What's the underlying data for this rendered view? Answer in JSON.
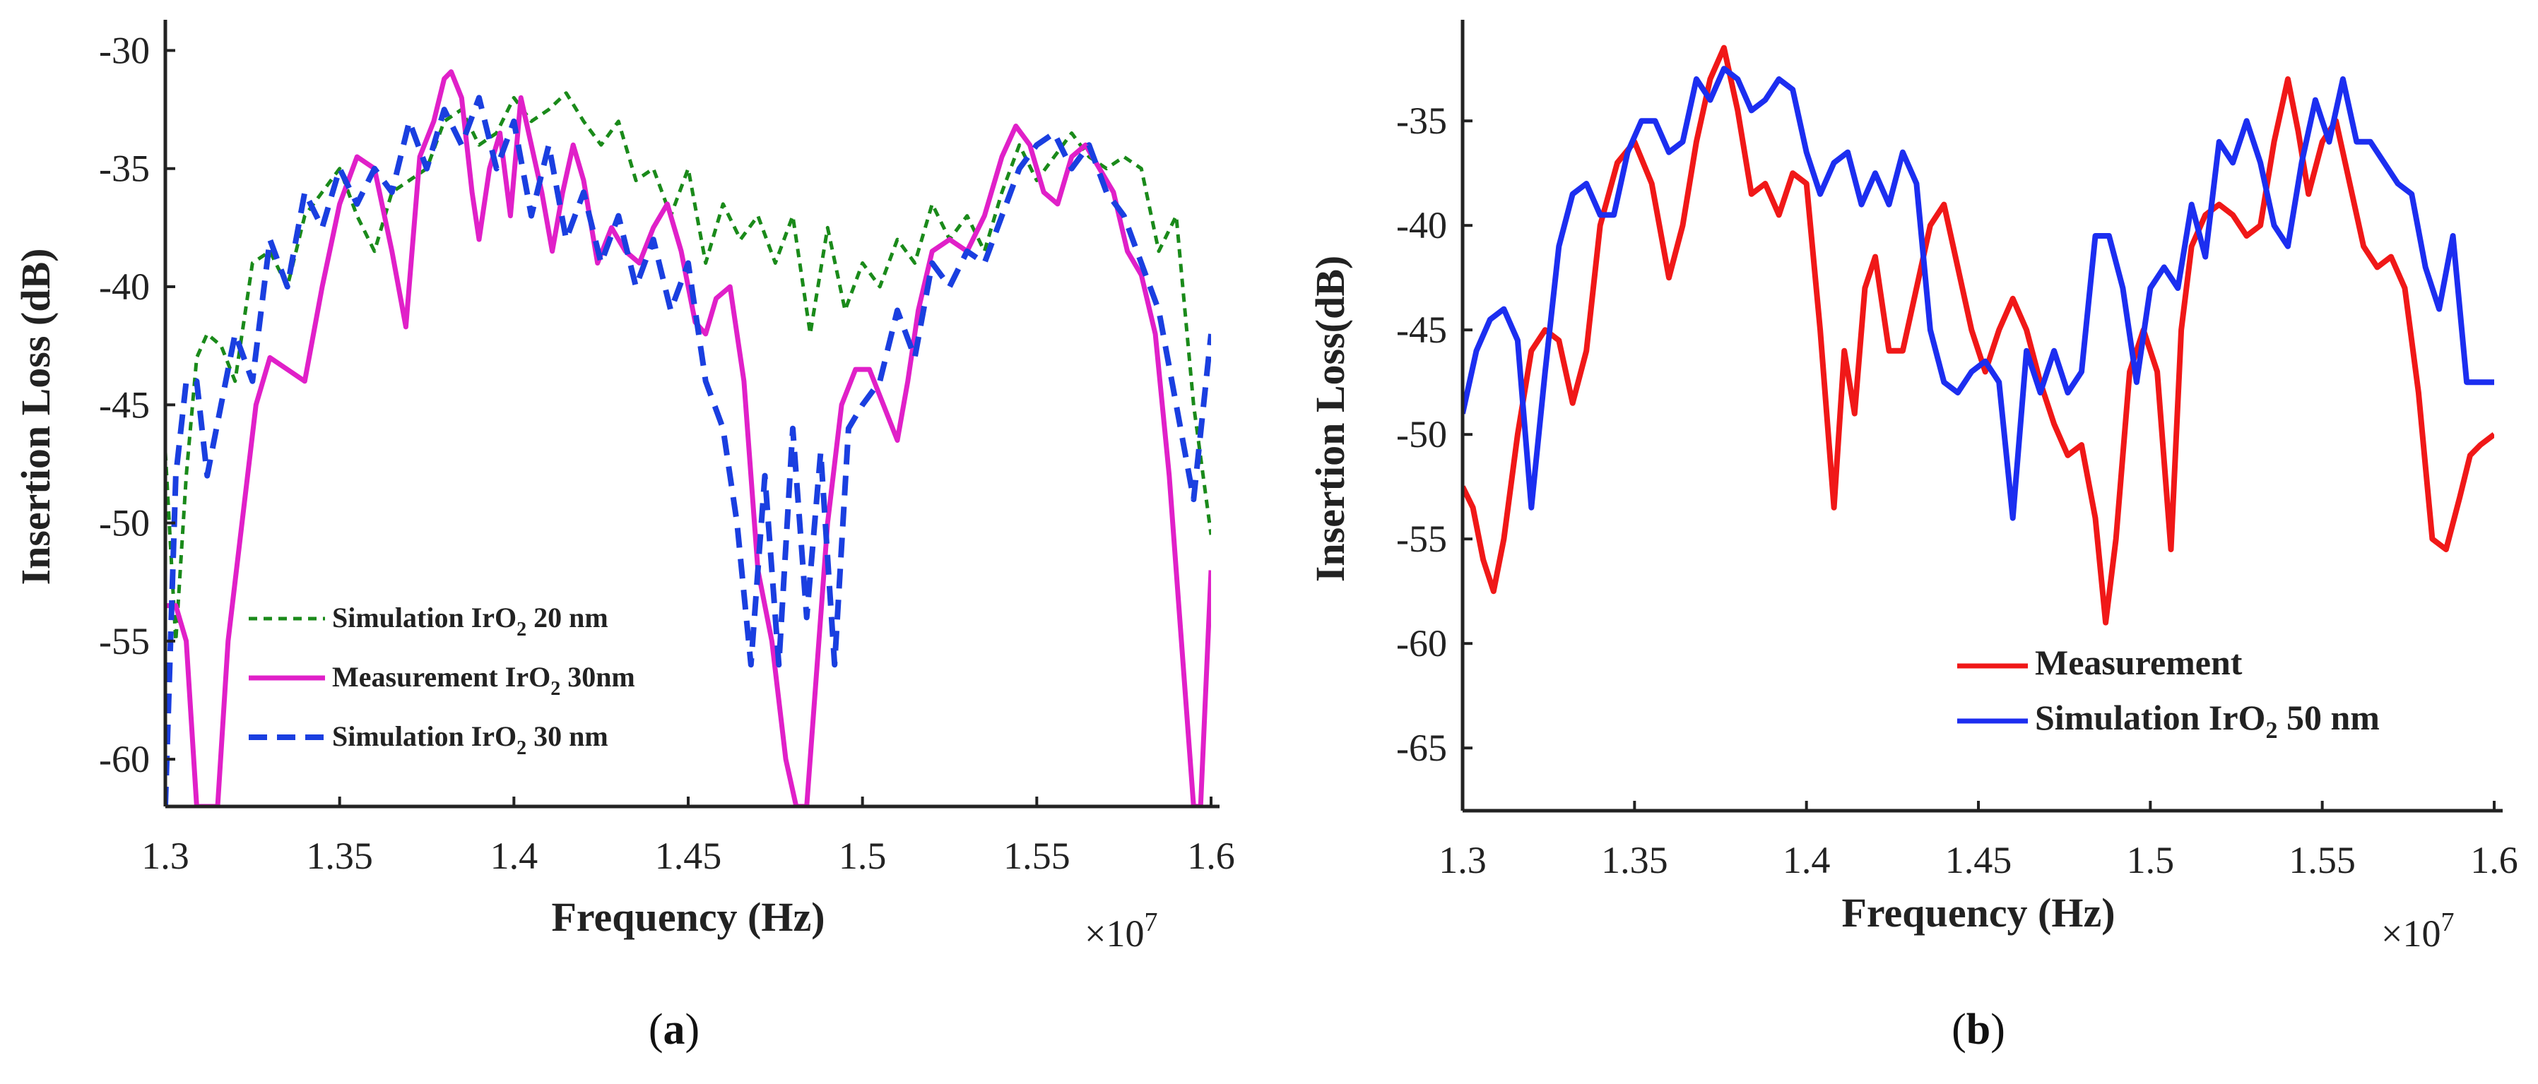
{
  "chart_data": [
    {
      "type": "line",
      "panel_label": "(a)",
      "panel_letter": "a",
      "xlabel": "Frequency (Hz)",
      "ylabel": "Insertion Loss (dB)",
      "x_multiplier": "×10^7",
      "xlim": [
        1.3,
        1.6
      ],
      "ylim": [
        -62,
        -29
      ],
      "xticks": [
        "1.3",
        "1.35",
        "1.4",
        "1.45",
        "1.5",
        "1.55",
        "1.6"
      ],
      "yticks": [
        "-30",
        "-35",
        "-40",
        "-45",
        "-50",
        "-55",
        "-60"
      ],
      "legend_position": "bottom-left",
      "series": [
        {
          "name": "Simulation IrO2 20 nm",
          "name_main": "Simulation IrO",
          "name_sub": "2",
          "name_tail": " 20 nm",
          "color": "#1a8a1a",
          "style": "dotted",
          "x": [
            1.3,
            1.303,
            1.306,
            1.309,
            1.312,
            1.316,
            1.32,
            1.325,
            1.33,
            1.335,
            1.34,
            1.345,
            1.35,
            1.355,
            1.36,
            1.365,
            1.37,
            1.375,
            1.38,
            1.385,
            1.39,
            1.395,
            1.4,
            1.405,
            1.41,
            1.415,
            1.42,
            1.425,
            1.43,
            1.435,
            1.44,
            1.445,
            1.45,
            1.455,
            1.46,
            1.465,
            1.47,
            1.475,
            1.48,
            1.485,
            1.49,
            1.495,
            1.5,
            1.505,
            1.51,
            1.515,
            1.52,
            1.525,
            1.53,
            1.535,
            1.54,
            1.545,
            1.55,
            1.555,
            1.56,
            1.565,
            1.57,
            1.575,
            1.58,
            1.585,
            1.59,
            1.595,
            1.6
          ],
          "y": [
            -47,
            -55,
            -48,
            -43,
            -42,
            -42.5,
            -44,
            -39,
            -38.5,
            -40,
            -37,
            -36,
            -35,
            -37,
            -38.5,
            -36,
            -35.5,
            -35,
            -33,
            -32.5,
            -34,
            -33.5,
            -32,
            -33,
            -32.5,
            -31.8,
            -33,
            -34,
            -33,
            -35.5,
            -35,
            -37,
            -35,
            -39,
            -36.5,
            -38,
            -37,
            -39,
            -37,
            -42,
            -37.5,
            -41,
            -39,
            -40,
            -38,
            -39,
            -36.5,
            -38,
            -37,
            -38.5,
            -36,
            -34,
            -35.5,
            -34.5,
            -33.5,
            -34.5,
            -35,
            -34.5,
            -35,
            -38.5,
            -37,
            -45,
            -50.5
          ]
        },
        {
          "name": "Measurement IrO2 30nm",
          "name_main": "Measurement IrO",
          "name_sub": "2",
          "name_tail": " 30nm",
          "color": "#e020c8",
          "style": "solid",
          "x": [
            1.3,
            1.303,
            1.306,
            1.309,
            1.312,
            1.315,
            1.318,
            1.322,
            1.326,
            1.33,
            1.335,
            1.34,
            1.345,
            1.35,
            1.355,
            1.36,
            1.365,
            1.369,
            1.373,
            1.377,
            1.38,
            1.382,
            1.385,
            1.388,
            1.39,
            1.393,
            1.396,
            1.399,
            1.402,
            1.405,
            1.408,
            1.411,
            1.414,
            1.417,
            1.42,
            1.424,
            1.428,
            1.432,
            1.436,
            1.44,
            1.444,
            1.448,
            1.452,
            1.455,
            1.458,
            1.462,
            1.466,
            1.47,
            1.474,
            1.478,
            1.481,
            1.484,
            1.487,
            1.49,
            1.494,
            1.498,
            1.502,
            1.506,
            1.51,
            1.513,
            1.516,
            1.52,
            1.525,
            1.53,
            1.535,
            1.54,
            1.544,
            1.548,
            1.552,
            1.556,
            1.56,
            1.564,
            1.568,
            1.572,
            1.576,
            1.58,
            1.584,
            1.588,
            1.592,
            1.595,
            1.597,
            1.6
          ],
          "y": [
            -53.5,
            -53.5,
            -55,
            -62,
            -62,
            -62,
            -55,
            -50,
            -45,
            -43,
            -43.5,
            -44,
            -40,
            -36.5,
            -34.5,
            -35,
            -38.5,
            -41.7,
            -34.5,
            -33,
            -31.2,
            -30.9,
            -32,
            -36,
            -38,
            -35,
            -33.5,
            -37,
            -32,
            -34,
            -36,
            -38.5,
            -36,
            -34,
            -35.5,
            -39,
            -37.5,
            -38.5,
            -39,
            -37.5,
            -36.5,
            -38.5,
            -41.5,
            -42,
            -40.5,
            -40,
            -44,
            -52,
            -55,
            -60,
            -62,
            -62,
            -56,
            -50,
            -45,
            -43.5,
            -43.5,
            -45,
            -46.5,
            -44,
            -41,
            -38.5,
            -38,
            -38.5,
            -37,
            -34.5,
            -33.2,
            -34,
            -36,
            -36.5,
            -34.5,
            -34,
            -35,
            -36,
            -38.5,
            -39.5,
            -42,
            -48,
            -56,
            -62,
            -62,
            -52
          ]
        },
        {
          "name": "Simulation IrO2 30 nm",
          "name_main": "Simulation IrO",
          "name_sub": "2",
          "name_tail": " 30 nm",
          "color": "#1a3fe0",
          "style": "dashed",
          "x": [
            1.3,
            1.303,
            1.306,
            1.309,
            1.312,
            1.316,
            1.32,
            1.325,
            1.33,
            1.335,
            1.34,
            1.345,
            1.35,
            1.355,
            1.36,
            1.365,
            1.37,
            1.375,
            1.38,
            1.385,
            1.39,
            1.395,
            1.4,
            1.405,
            1.41,
            1.415,
            1.42,
            1.425,
            1.43,
            1.435,
            1.44,
            1.445,
            1.45,
            1.455,
            1.46,
            1.464,
            1.468,
            1.472,
            1.476,
            1.48,
            1.484,
            1.488,
            1.492,
            1.496,
            1.5,
            1.505,
            1.51,
            1.515,
            1.52,
            1.525,
            1.53,
            1.535,
            1.54,
            1.545,
            1.55,
            1.555,
            1.56,
            1.565,
            1.57,
            1.575,
            1.58,
            1.585,
            1.59,
            1.595,
            1.6
          ],
          "y": [
            -62,
            -48,
            -44,
            -44,
            -48,
            -45,
            -42,
            -44,
            -38,
            -40,
            -36,
            -37.5,
            -35,
            -36.5,
            -35,
            -36,
            -33,
            -35,
            -32.5,
            -34,
            -32,
            -35,
            -33,
            -37,
            -34,
            -38,
            -36,
            -39,
            -37,
            -40,
            -38,
            -41,
            -39,
            -44,
            -46,
            -50,
            -56,
            -48,
            -56,
            -46,
            -54,
            -47,
            -56,
            -46,
            -45,
            -44,
            -41,
            -43,
            -39,
            -40,
            -38.5,
            -39,
            -37,
            -35,
            -34,
            -33.5,
            -35,
            -34,
            -36,
            -37,
            -39,
            -41,
            -45,
            -49,
            -42
          ]
        }
      ]
    },
    {
      "type": "line",
      "panel_label": "(b)",
      "panel_letter": "b",
      "xlabel": "Frequency (Hz)",
      "ylabel": "Insertion Loss(dB)",
      "x_multiplier": "×10^7",
      "xlim": [
        1.3,
        1.6
      ],
      "ylim": [
        -68,
        -30.5
      ],
      "xticks": [
        "1.3",
        "1.35",
        "1.4",
        "1.45",
        "1.5",
        "1.55",
        "1.6"
      ],
      "yticks": [
        "-35",
        "-40",
        "-45",
        "-50",
        "-55",
        "-60",
        "-65"
      ],
      "legend_position": "bottom-right",
      "series": [
        {
          "name": "Measurement",
          "name_main": "Measurement",
          "name_sub": "",
          "name_tail": "",
          "color": "#f01818",
          "style": "solid",
          "x": [
            1.3,
            1.303,
            1.306,
            1.309,
            1.312,
            1.316,
            1.32,
            1.324,
            1.328,
            1.332,
            1.336,
            1.34,
            1.345,
            1.35,
            1.355,
            1.36,
            1.364,
            1.368,
            1.372,
            1.376,
            1.38,
            1.384,
            1.388,
            1.392,
            1.396,
            1.4,
            1.404,
            1.408,
            1.411,
            1.414,
            1.417,
            1.42,
            1.424,
            1.428,
            1.432,
            1.436,
            1.44,
            1.444,
            1.448,
            1.452,
            1.456,
            1.46,
            1.464,
            1.468,
            1.472,
            1.476,
            1.48,
            1.484,
            1.487,
            1.49,
            1.494,
            1.498,
            1.502,
            1.506,
            1.509,
            1.512,
            1.516,
            1.52,
            1.524,
            1.528,
            1.532,
            1.536,
            1.54,
            1.543,
            1.546,
            1.55,
            1.554,
            1.558,
            1.562,
            1.566,
            1.57,
            1.574,
            1.578,
            1.582,
            1.586,
            1.59,
            1.593,
            1.596,
            1.6
          ],
          "y": [
            -52.5,
            -53.5,
            -56,
            -57.5,
            -55,
            -50,
            -46,
            -45,
            -45.5,
            -48.5,
            -46,
            -40,
            -37,
            -36,
            -38,
            -42.5,
            -40,
            -36,
            -33,
            -31.5,
            -34.5,
            -38.5,
            -38,
            -39.5,
            -37.5,
            -38,
            -45,
            -53.5,
            -46,
            -49,
            -43,
            -41.5,
            -46,
            -46,
            -43,
            -40,
            -39,
            -42,
            -45,
            -47,
            -45,
            -43.5,
            -45,
            -47.5,
            -49.5,
            -51,
            -50.5,
            -54,
            -59,
            -55,
            -47,
            -45,
            -47,
            -55.5,
            -45,
            -41,
            -39.5,
            -39,
            -39.5,
            -40.5,
            -40,
            -36,
            -33,
            -35.5,
            -38.5,
            -36,
            -35,
            -38,
            -41,
            -42,
            -41.5,
            -43,
            -48,
            -55,
            -55.5,
            -53,
            -51,
            -50.5,
            -50
          ]
        },
        {
          "name": "Simulation IrO2 50 nm",
          "name_main": "Simulation IrO",
          "name_sub": "2",
          "name_tail": " 50 nm",
          "color": "#1c2ef0",
          "style": "solid",
          "x": [
            1.3,
            1.304,
            1.308,
            1.312,
            1.316,
            1.32,
            1.324,
            1.328,
            1.332,
            1.336,
            1.34,
            1.344,
            1.348,
            1.352,
            1.356,
            1.36,
            1.364,
            1.368,
            1.372,
            1.376,
            1.38,
            1.384,
            1.388,
            1.392,
            1.396,
            1.4,
            1.404,
            1.408,
            1.412,
            1.416,
            1.42,
            1.424,
            1.428,
            1.432,
            1.436,
            1.44,
            1.444,
            1.448,
            1.452,
            1.456,
            1.46,
            1.464,
            1.468,
            1.472,
            1.476,
            1.48,
            1.484,
            1.488,
            1.492,
            1.496,
            1.5,
            1.504,
            1.508,
            1.512,
            1.516,
            1.52,
            1.524,
            1.528,
            1.532,
            1.536,
            1.54,
            1.544,
            1.548,
            1.552,
            1.556,
            1.56,
            1.564,
            1.568,
            1.572,
            1.576,
            1.58,
            1.584,
            1.588,
            1.592,
            1.596,
            1.6
          ],
          "y": [
            -49,
            -46,
            -44.5,
            -44,
            -45.5,
            -53.5,
            -47,
            -41,
            -38.5,
            -38,
            -39.5,
            -39.5,
            -36.5,
            -35,
            -35,
            -36.5,
            -36,
            -33,
            -34,
            -32.5,
            -33,
            -34.5,
            -34,
            -33,
            -33.5,
            -36.5,
            -38.5,
            -37,
            -36.5,
            -39,
            -37.5,
            -39,
            -36.5,
            -38,
            -45,
            -47.5,
            -48,
            -47,
            -46.5,
            -47.5,
            -54,
            -46,
            -48,
            -46,
            -48,
            -47,
            -40.5,
            -40.5,
            -43,
            -47.5,
            -43,
            -42,
            -43,
            -39,
            -41.5,
            -36,
            -37,
            -35,
            -37,
            -40,
            -41,
            -37,
            -34,
            -36,
            -33,
            -36,
            -36,
            -37,
            -38,
            -38.5,
            -42,
            -44,
            -40.5,
            -47.5,
            -47.5,
            -47.5
          ]
        }
      ]
    }
  ]
}
